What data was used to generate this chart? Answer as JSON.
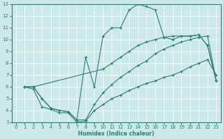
{
  "xlabel": "Humidex (Indice chaleur)",
  "bg_color": "#cce8ea",
  "line_color": "#2e7d74",
  "xlim": [
    -0.5,
    23.5
  ],
  "ylim": [
    3,
    13
  ],
  "xticks": [
    0,
    1,
    2,
    3,
    4,
    5,
    6,
    7,
    8,
    9,
    10,
    11,
    12,
    13,
    14,
    15,
    16,
    17,
    18,
    19,
    20,
    21,
    22,
    23
  ],
  "yticks": [
    3,
    4,
    5,
    6,
    7,
    8,
    9,
    10,
    11,
    12,
    13
  ],
  "series": {
    "line1": {
      "x": [
        1,
        2,
        3,
        4,
        5,
        6,
        7,
        8,
        9,
        10,
        11,
        12,
        13,
        14,
        15,
        16,
        17,
        18,
        19,
        20,
        21,
        22,
        23
      ],
      "y": [
        6.0,
        6.0,
        5.0,
        4.2,
        4.0,
        3.9,
        3.2,
        8.5,
        6.0,
        10.3,
        11.0,
        11.0,
        12.5,
        13.0,
        12.8,
        12.5,
        10.2,
        10.0,
        10.3,
        10.3,
        10.4,
        9.5,
        6.5
      ]
    },
    "line2": {
      "x": [
        1,
        2,
        10,
        11,
        12,
        13,
        14,
        15,
        16,
        17,
        18,
        19,
        20,
        21,
        22,
        23
      ],
      "y": [
        6.0,
        6.0,
        7.5,
        8.0,
        8.5,
        9.0,
        9.5,
        9.8,
        10.0,
        10.2,
        10.3,
        10.3,
        10.3,
        10.4,
        9.5,
        6.5
      ]
    },
    "line3": {
      "x": [
        1,
        2,
        3,
        4,
        5,
        6,
        7,
        8,
        9,
        10,
        11,
        12,
        13,
        14,
        15,
        16,
        17,
        18,
        19,
        20,
        21,
        22,
        23
      ],
      "y": [
        6.0,
        6.0,
        5.0,
        4.2,
        4.0,
        3.9,
        3.2,
        3.2,
        4.5,
        5.5,
        6.2,
        6.8,
        7.3,
        7.8,
        8.2,
        8.8,
        9.2,
        9.5,
        9.8,
        10.0,
        10.2,
        10.3,
        6.5
      ]
    },
    "line4": {
      "x": [
        1,
        2,
        3,
        4,
        5,
        6,
        7,
        8,
        9,
        10,
        11,
        12,
        13,
        14,
        15,
        16,
        17,
        18,
        19,
        20,
        21,
        22,
        23
      ],
      "y": [
        6.0,
        5.8,
        4.3,
        4.1,
        3.8,
        3.8,
        3.0,
        3.1,
        4.0,
        4.5,
        5.0,
        5.3,
        5.7,
        6.0,
        6.3,
        6.5,
        6.8,
        7.0,
        7.3,
        7.7,
        8.0,
        8.3,
        7.0
      ]
    }
  }
}
